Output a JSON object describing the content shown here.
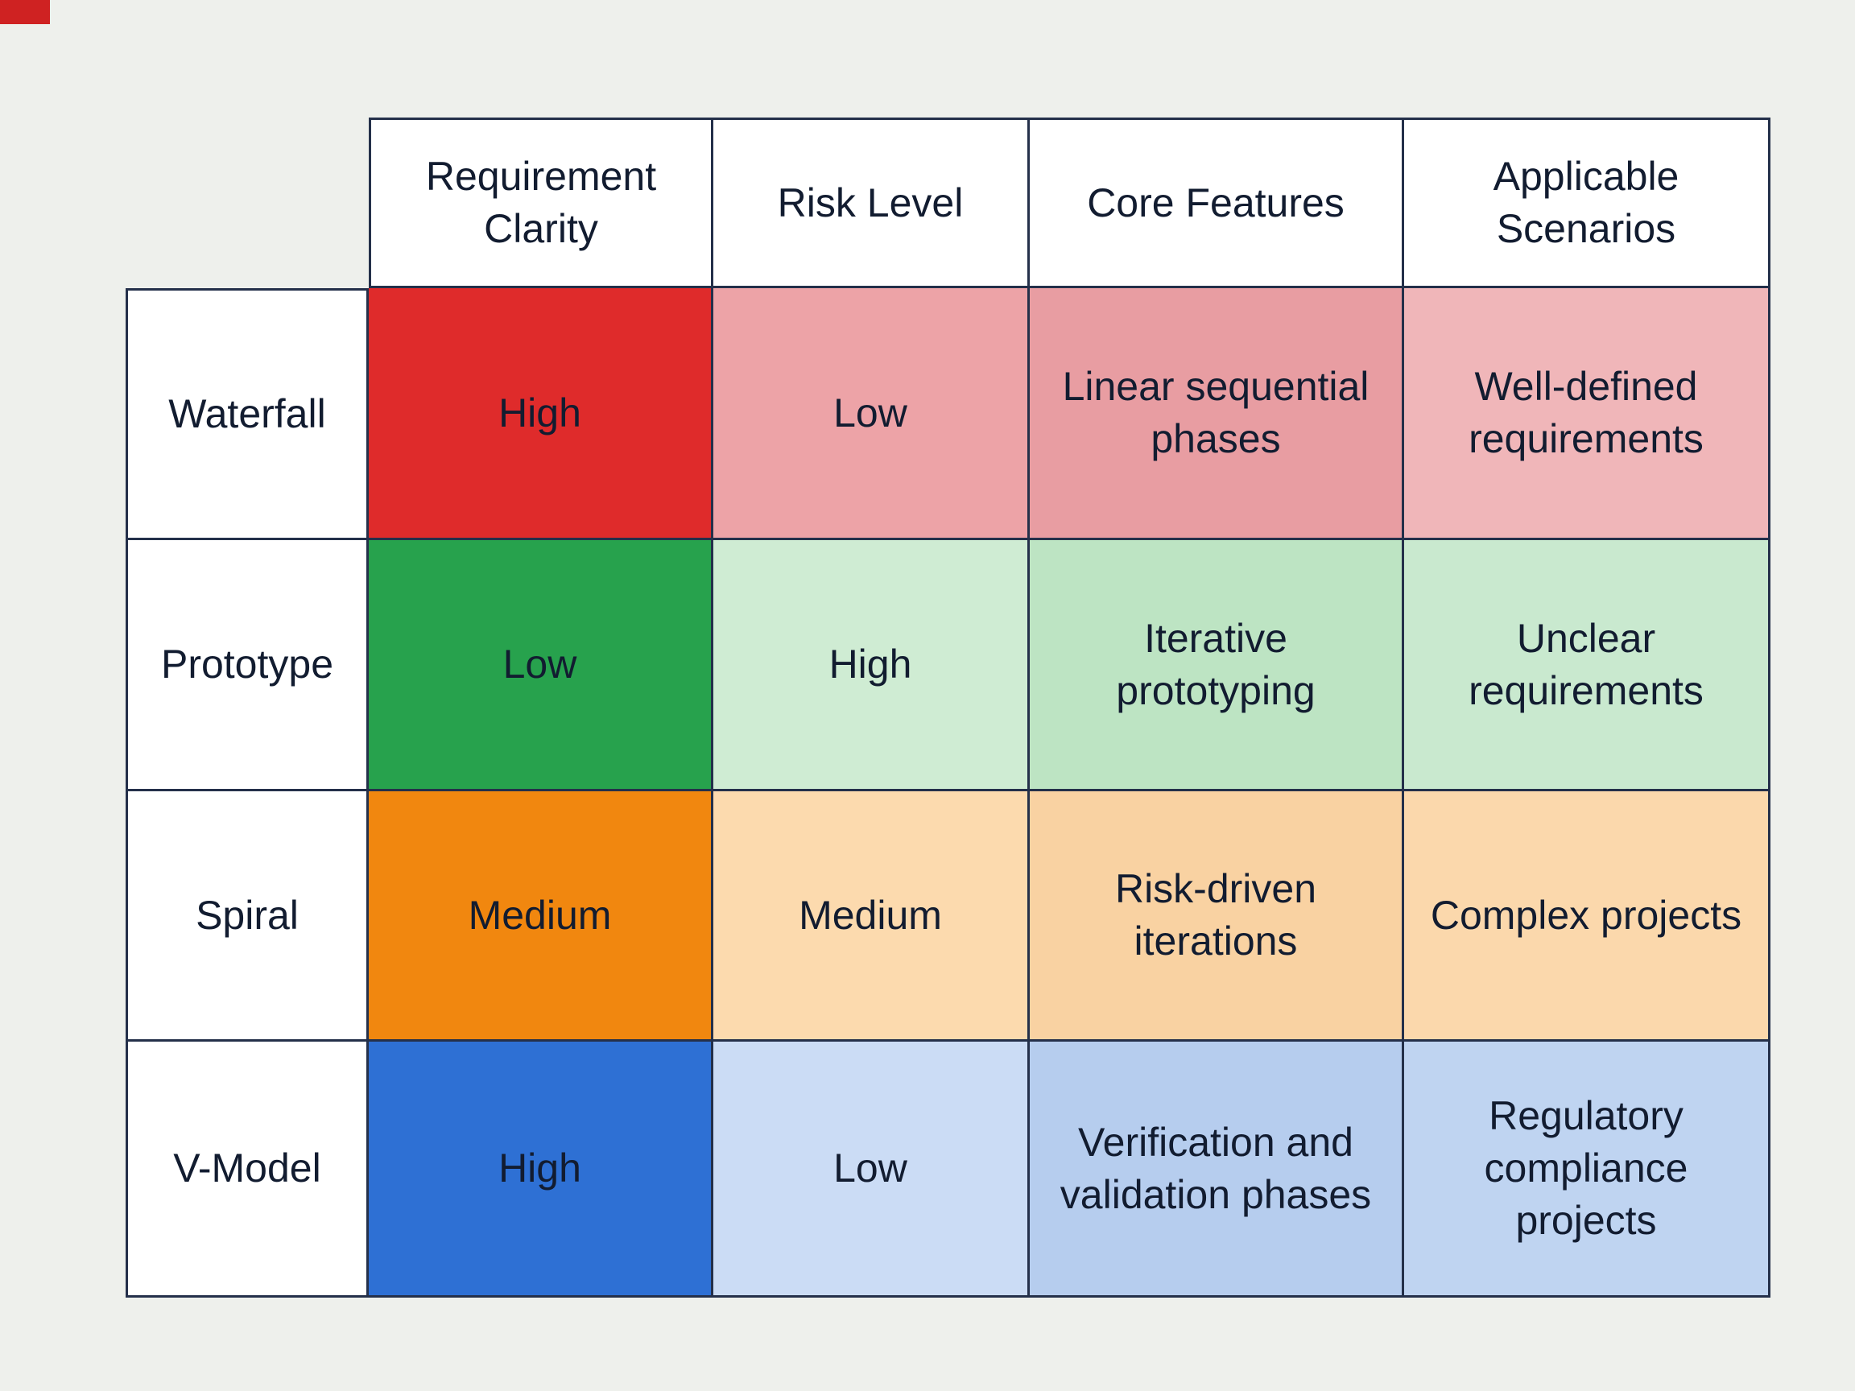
{
  "page": {
    "background": "#eef0ec",
    "corner_mark_color": "#cf2222"
  },
  "table": {
    "columns": [
      {
        "label": "Requirement Clarity"
      },
      {
        "label": "Risk Level"
      },
      {
        "label": "Core Features"
      },
      {
        "label": "Applicable Scenarios"
      }
    ],
    "rows": [
      {
        "label": "Waterfall",
        "cells": [
          {
            "text": "High",
            "bg": "#df2b2b"
          },
          {
            "text": "Low",
            "bg": "#eda3a7"
          },
          {
            "text": "Linear sequential phases",
            "bg": "#e89da2"
          },
          {
            "text": "Well-defined requirements",
            "bg": "#f0b6b9"
          }
        ]
      },
      {
        "label": "Prototype",
        "cells": [
          {
            "text": "Low",
            "bg": "#27a24d"
          },
          {
            "text": "High",
            "bg": "#cfecd3"
          },
          {
            "text": "Iterative prototyping",
            "bg": "#bde4c3"
          },
          {
            "text": "Unclear requirements",
            "bg": "#c9e9cf"
          }
        ]
      },
      {
        "label": "Spiral",
        "cells": [
          {
            "text": "Medium",
            "bg": "#f1870f"
          },
          {
            "text": "Medium",
            "bg": "#fcdaae"
          },
          {
            "text": "Risk-driven iterations",
            "bg": "#f9d2a2"
          },
          {
            "text": "Complex projects",
            "bg": "#fbd8ac"
          }
        ]
      },
      {
        "label": "V-Model",
        "cells": [
          {
            "text": "High",
            "bg": "#2e70d4"
          },
          {
            "text": "Low",
            "bg": "#cbdcf5"
          },
          {
            "text": "Verification and validation phases",
            "bg": "#b6cdee"
          },
          {
            "text": "Regulatory compliance projects",
            "bg": "#bfd4f1"
          }
        ]
      }
    ]
  },
  "chart_data": {
    "type": "table",
    "title": "",
    "columns": [
      "Requirement Clarity",
      "Risk Level",
      "Core Features",
      "Applicable Scenarios"
    ],
    "row_labels": [
      "Waterfall",
      "Prototype",
      "Spiral",
      "V-Model"
    ],
    "rows": [
      [
        "High",
        "Low",
        "Linear sequential phases",
        "Well-defined requirements"
      ],
      [
        "Low",
        "High",
        "Iterative prototyping",
        "Unclear requirements"
      ],
      [
        "Medium",
        "Medium",
        "Risk-driven iterations",
        "Complex projects"
      ],
      [
        "High",
        "Low",
        "Verification and validation phases",
        "Regulatory compliance projects"
      ]
    ],
    "row_accent_colors": [
      "#df2b2b",
      "#27a24d",
      "#f1870f",
      "#2e70d4"
    ]
  }
}
